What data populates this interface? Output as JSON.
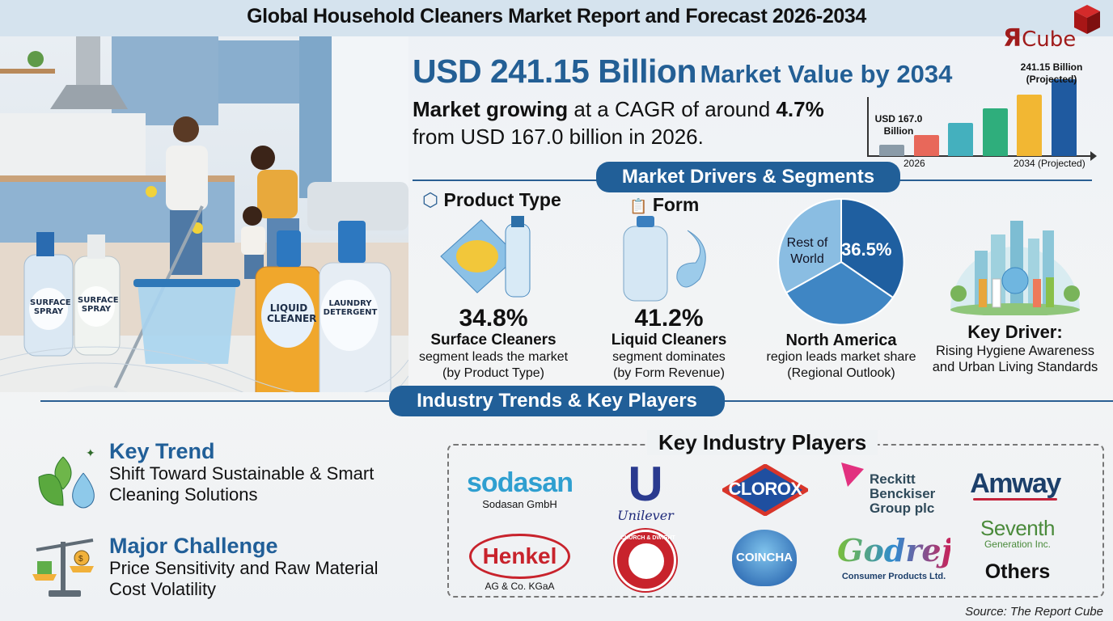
{
  "header": {
    "title": "Global Household Cleaners Market Report and Forecast 2026-2034",
    "logo": {
      "letter": "Я",
      "text": "Cube",
      "color": "#a01c1c"
    }
  },
  "hero_image": {
    "description": "Family cleaning kitchen with cleaning products",
    "bottle_labels": [
      "SURFACE SPRAY",
      "SURFACE SPRAY",
      "LIQUID CLEANER",
      "LAUNDRY DETERGENT"
    ]
  },
  "headline": {
    "value": "USD 241.15 Billion",
    "suffix": "Market Value by 2034",
    "line1_bold": "Market growing",
    "line1_rest": "at a CAGR of around",
    "cagr": "4.7%",
    "line2": "from USD 167.0 billion in 2026."
  },
  "chart_data": {
    "type": "bar",
    "title": "",
    "categories": [
      "2026",
      "",
      "",
      "",
      "",
      "2034 (Projected)"
    ],
    "values": [
      167.0,
      178,
      192,
      208,
      224,
      241.15
    ],
    "colors": [
      "#8a9ba8",
      "#e8685a",
      "#44b0be",
      "#2fae7c",
      "#f2b733",
      "#1f5aa0"
    ],
    "annotations": [
      {
        "label": "USD 167.0 Billion",
        "at": "2026"
      },
      {
        "label": "241.15 Billion (Projected)",
        "at": "2034 (Projected)"
      }
    ],
    "xlabel": "",
    "ylabel": "",
    "x_tick_labels": [
      "2026",
      "2034 (Projected)"
    ],
    "grid": false,
    "legend": "none"
  },
  "sections": {
    "drivers": "Market Drivers & Segments",
    "trends": "Industry Trends & Key Players"
  },
  "segments": {
    "product_type": {
      "heading": "Product Type",
      "icon": "box-icon",
      "percent": "34.8%",
      "name": "Surface Cleaners",
      "desc1": "segment leads the market",
      "desc2": "(by Product Type)"
    },
    "form": {
      "heading": "Form",
      "icon": "clipboard-icon",
      "percent": "41.2%",
      "name": "Liquid Cleaners",
      "desc1": "segment dominates",
      "desc2": "(by Form Revenue)"
    },
    "region": {
      "pie": {
        "slices": [
          {
            "label": "36.5%",
            "value": 36.5,
            "color": "#1f5fa0"
          },
          {
            "label": "",
            "value": 33.5,
            "color": "#3f86c4"
          },
          {
            "label": "Rest of World",
            "value": 30.0,
            "color": "#8abde2"
          }
        ]
      },
      "name": "North America",
      "desc1": "region leads market share",
      "desc2": "(Regional Outlook)"
    },
    "driver": {
      "title": "Key Driver:",
      "line1": "Rising Hygiene Awareness",
      "line2": "and Urban Living Standards"
    }
  },
  "trends": {
    "key_trend": {
      "title": "Key Trend",
      "line1": "Shift Toward Sustainable & Smart",
      "line2": "Cleaning Solutions"
    },
    "challenge": {
      "title": "Major Challenge",
      "line1": "Price Sensitivity and Raw Material",
      "line2": "Cost Volatility"
    }
  },
  "players": {
    "title": "Key Industry Players",
    "items": [
      {
        "logo": "sodasan",
        "caption": "Sodasan GmbH"
      },
      {
        "logo": "Unilever",
        "caption": ""
      },
      {
        "logo": "CLOROX",
        "caption": ""
      },
      {
        "logo": "Reckitt Benckiser Group plc",
        "caption": ""
      },
      {
        "logo": "Amway",
        "caption": ""
      },
      {
        "logo": "Henkel",
        "caption": "AG & Co. KGaA"
      },
      {
        "logo": "CHURCH & DWIGHT",
        "caption": ""
      },
      {
        "logo": "COINCHA",
        "caption": ""
      },
      {
        "logo": "Godrej",
        "caption": "Consumer Products Ltd."
      },
      {
        "logo": "Seventh",
        "caption": "Generation Inc."
      },
      {
        "logo": "",
        "caption": "Others"
      }
    ]
  },
  "source": "Source: The Report Cube"
}
